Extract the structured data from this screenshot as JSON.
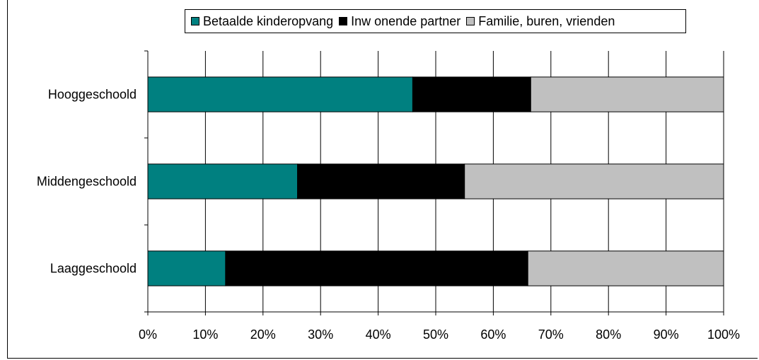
{
  "chart_data": {
    "type": "bar",
    "orientation": "horizontal",
    "stacked": true,
    "percent_stacked": true,
    "categories": [
      "Hooggeschoold",
      "Middengeschoold",
      "Laaggeschoold"
    ],
    "series": [
      {
        "name": "Betaalde kinderopvang",
        "color": "#008080",
        "values": [
          46,
          26,
          13.5
        ]
      },
      {
        "name": "Inw onende partner",
        "color": "#000000",
        "values": [
          20.5,
          29,
          52.5
        ]
      },
      {
        "name": "Familie, buren, vrienden",
        "color": "#c0c0c0",
        "values": [
          33.5,
          45,
          34
        ]
      }
    ],
    "x_ticks": [
      "0%",
      "10%",
      "20%",
      "30%",
      "40%",
      "50%",
      "60%",
      "70%",
      "80%",
      "90%",
      "100%"
    ],
    "xlim": [
      0,
      100
    ],
    "grid": "vertical",
    "legend_position": "top"
  }
}
